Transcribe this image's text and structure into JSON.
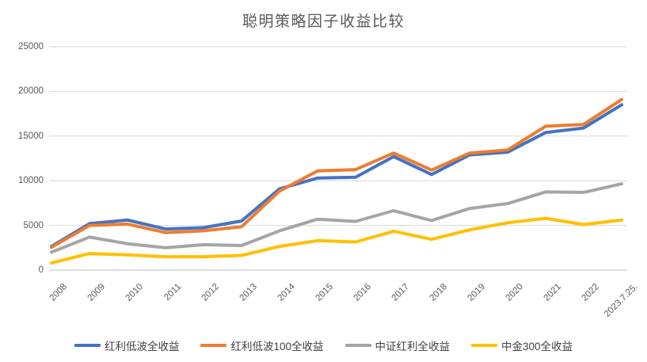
{
  "chart_data": {
    "type": "line",
    "title": "聪明策略因子收益比较",
    "categories": [
      "2008",
      "2009",
      "2010",
      "2011",
      "2012",
      "2013",
      "2014",
      "2015",
      "2016",
      "2017",
      "2018",
      "2019",
      "2020",
      "2021",
      "2022",
      "2023.7.25."
    ],
    "series": [
      {
        "name": "红利低波全收益",
        "color": "#4472C4",
        "values": [
          2650,
          5200,
          5600,
          4600,
          4750,
          5500,
          9100,
          10300,
          10400,
          12700,
          10700,
          12900,
          13200,
          15400,
          15900,
          18500
        ]
      },
      {
        "name": "红利低波100全收益",
        "color": "#ED7D31",
        "values": [
          2550,
          5000,
          5150,
          4200,
          4400,
          4850,
          8850,
          11100,
          11250,
          13100,
          11200,
          13100,
          13450,
          16100,
          16300,
          19100
        ]
      },
      {
        "name": "中证红利全收益",
        "color": "#A5A5A5",
        "values": [
          2000,
          3700,
          2950,
          2500,
          2850,
          2750,
          4400,
          5700,
          5450,
          6650,
          5550,
          6900,
          7450,
          8750,
          8700,
          9650
        ]
      },
      {
        "name": "中金300全收益",
        "color": "#FFC000",
        "values": [
          800,
          1850,
          1700,
          1500,
          1500,
          1650,
          2650,
          3300,
          3150,
          4350,
          3450,
          4500,
          5300,
          5800,
          5100,
          5600
        ]
      }
    ],
    "y_axis": {
      "min": 0,
      "max": 25000,
      "step": 5000,
      "ticks": [
        "0",
        "5000",
        "10000",
        "15000",
        "20000",
        "25000"
      ]
    },
    "xlabel": "",
    "ylabel": "",
    "grid": true,
    "legend_position": "bottom",
    "axis_label_color": "#595959",
    "gridline_color": "#D9D9D9",
    "axis_line_color": "#BFBFBF"
  }
}
